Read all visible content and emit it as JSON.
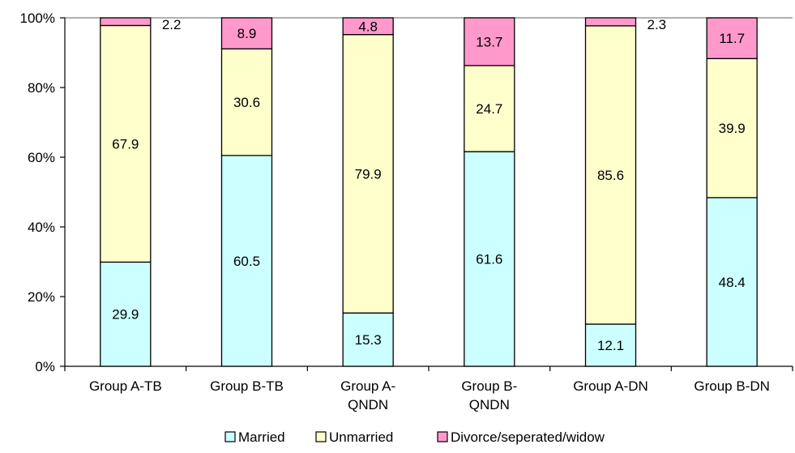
{
  "chart_data": {
    "type": "bar",
    "stacked": true,
    "normalized_percent": true,
    "categories": [
      [
        "Group A-TB"
      ],
      [
        "Group B-TB"
      ],
      [
        "Group A-",
        "QNDN"
      ],
      [
        "Group B-",
        "QNDN"
      ],
      [
        "Group A-DN"
      ],
      [
        "Group B-DN"
      ]
    ],
    "series": [
      {
        "name": "Married",
        "color": "#ccffff",
        "values": [
          29.9,
          60.5,
          15.3,
          61.6,
          12.1,
          48.4
        ]
      },
      {
        "name": "Unmarried",
        "color": "#ffffcc",
        "values": [
          67.9,
          30.6,
          79.9,
          24.7,
          85.6,
          39.9
        ]
      },
      {
        "name": "Divorce/seperated/widow",
        "color": "#ff99cc",
        "values": [
          2.2,
          8.9,
          4.8,
          13.7,
          2.3,
          11.7
        ]
      }
    ],
    "y_ticks": [
      "0%",
      "20%",
      "40%",
      "60%",
      "80%",
      "100%"
    ],
    "ylim": [
      0,
      100
    ],
    "legend_position": "bottom",
    "grid": false
  }
}
